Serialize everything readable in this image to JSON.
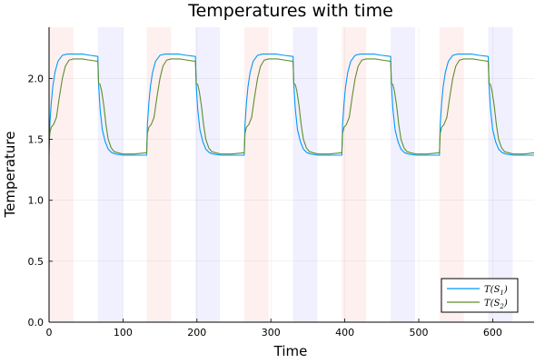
{
  "chart_data": {
    "type": "line",
    "title": "Temperatures with time",
    "xlabel": "Time",
    "ylabel": "Temperature",
    "xlim": [
      0,
      656
    ],
    "ylim": [
      0,
      2.42
    ],
    "x_ticks": [
      0,
      100,
      200,
      300,
      400,
      500,
      600
    ],
    "y_ticks": [
      0.0,
      0.5,
      1.0,
      1.5,
      2.0
    ],
    "y_tick_labels": [
      "0.0",
      "0.5",
      "1.0",
      "1.5",
      "2.0"
    ],
    "grid": true,
    "legend_position": "bottom-right",
    "shaded_intervals": [
      {
        "start": 0,
        "end": 33,
        "color": "#ff8080"
      },
      {
        "start": 66,
        "end": 100,
        "color": "#8080ff"
      },
      {
        "start": 132,
        "end": 165,
        "color": "#ff8080"
      },
      {
        "start": 198,
        "end": 231,
        "color": "#8080ff"
      },
      {
        "start": 264,
        "end": 297,
        "color": "#ff8080"
      },
      {
        "start": 330,
        "end": 363,
        "color": "#8080ff"
      },
      {
        "start": 396,
        "end": 429,
        "color": "#ff8080"
      },
      {
        "start": 462,
        "end": 495,
        "color": "#8080ff"
      },
      {
        "start": 528,
        "end": 561,
        "color": "#ff8080"
      },
      {
        "start": 594,
        "end": 627,
        "color": "#8080ff"
      }
    ],
    "series": [
      {
        "name": "T(S1)",
        "label_main": "T(S",
        "label_sub": "1",
        "label_close": ")",
        "color": "#009af9",
        "x": [
          0,
          1,
          3,
          5,
          8,
          12,
          18,
          25,
          33,
          45,
          55,
          66,
          67,
          69,
          72,
          76,
          80,
          85,
          90,
          100,
          115,
          132,
          133,
          135,
          137,
          140,
          144,
          150,
          157,
          165,
          175,
          185,
          198,
          199,
          201,
          204,
          208,
          212,
          217,
          222,
          232,
          247,
          264,
          265,
          267,
          269,
          272,
          276,
          282,
          289,
          297,
          307,
          317,
          330,
          331,
          333,
          336,
          340,
          344,
          349,
          354,
          364,
          379,
          396,
          397,
          399,
          401,
          404,
          408,
          414,
          421,
          429,
          439,
          449,
          462,
          463,
          465,
          468,
          472,
          476,
          481,
          486,
          496,
          511,
          528,
          529,
          531,
          533,
          536,
          540,
          546,
          553,
          561,
          571,
          581,
          594,
          595,
          597,
          600,
          604,
          608,
          613,
          618,
          628,
          643,
          656
        ],
        "y": [
          1.38,
          1.62,
          1.8,
          1.93,
          2.05,
          2.14,
          2.19,
          2.2,
          2.2,
          2.2,
          2.19,
          2.18,
          1.95,
          1.75,
          1.58,
          1.48,
          1.42,
          1.39,
          1.38,
          1.37,
          1.37,
          1.37,
          1.62,
          1.8,
          1.93,
          2.05,
          2.14,
          2.19,
          2.2,
          2.2,
          2.2,
          2.19,
          2.18,
          1.95,
          1.75,
          1.58,
          1.48,
          1.42,
          1.39,
          1.38,
          1.37,
          1.37,
          1.37,
          1.62,
          1.8,
          1.93,
          2.05,
          2.14,
          2.19,
          2.2,
          2.2,
          2.2,
          2.19,
          2.18,
          1.95,
          1.75,
          1.58,
          1.48,
          1.42,
          1.39,
          1.38,
          1.37,
          1.37,
          1.37,
          1.62,
          1.8,
          1.93,
          2.05,
          2.14,
          2.19,
          2.2,
          2.2,
          2.2,
          2.19,
          2.18,
          1.95,
          1.75,
          1.58,
          1.48,
          1.42,
          1.39,
          1.38,
          1.37,
          1.37,
          1.37,
          1.62,
          1.8,
          1.93,
          2.05,
          2.14,
          2.19,
          2.2,
          2.2,
          2.2,
          2.19,
          2.18,
          1.95,
          1.75,
          1.58,
          1.48,
          1.42,
          1.39,
          1.38,
          1.37,
          1.37,
          1.37
        ]
      },
      {
        "name": "T(S2)",
        "label_main": "T(S",
        "label_sub": "2",
        "label_close": ")",
        "color": "#5f8d2c",
        "x": [
          0,
          1,
          3,
          6,
          10,
          14,
          18,
          22,
          27,
          33,
          45,
          55,
          66,
          67,
          69,
          71,
          74,
          77,
          80,
          84,
          88,
          93,
          100,
          115,
          132,
          133,
          135,
          138,
          142,
          146,
          150,
          154,
          159,
          165,
          177,
          187,
          198,
          199,
          201,
          203,
          206,
          209,
          212,
          216,
          220,
          225,
          232,
          247,
          264,
          265,
          267,
          270,
          274,
          278,
          282,
          286,
          291,
          297,
          309,
          319,
          330,
          331,
          333,
          335,
          338,
          341,
          344,
          348,
          352,
          357,
          364,
          379,
          396,
          397,
          399,
          402,
          406,
          410,
          414,
          418,
          423,
          429,
          441,
          451,
          462,
          463,
          465,
          467,
          470,
          473,
          476,
          480,
          484,
          489,
          496,
          511,
          528,
          529,
          531,
          534,
          538,
          542,
          546,
          550,
          555,
          561,
          573,
          583,
          594,
          595,
          597,
          599,
          602,
          605,
          608,
          612,
          616,
          621,
          628,
          643,
          656
        ],
        "y": [
          1.45,
          1.55,
          1.6,
          1.62,
          1.68,
          1.85,
          2.0,
          2.1,
          2.15,
          2.16,
          2.16,
          2.15,
          2.14,
          1.96,
          1.95,
          1.9,
          1.78,
          1.62,
          1.5,
          1.43,
          1.4,
          1.39,
          1.38,
          1.38,
          1.39,
          1.55,
          1.6,
          1.62,
          1.68,
          1.85,
          2.0,
          2.1,
          2.15,
          2.16,
          2.16,
          2.15,
          2.14,
          1.96,
          1.95,
          1.9,
          1.78,
          1.62,
          1.5,
          1.43,
          1.4,
          1.39,
          1.38,
          1.38,
          1.39,
          1.55,
          1.6,
          1.62,
          1.68,
          1.85,
          2.0,
          2.1,
          2.15,
          2.16,
          2.16,
          2.15,
          2.14,
          1.96,
          1.95,
          1.9,
          1.78,
          1.62,
          1.5,
          1.43,
          1.4,
          1.39,
          1.38,
          1.38,
          1.39,
          1.55,
          1.6,
          1.62,
          1.68,
          1.85,
          2.0,
          2.1,
          2.15,
          2.16,
          2.16,
          2.15,
          2.14,
          1.96,
          1.95,
          1.9,
          1.78,
          1.62,
          1.5,
          1.43,
          1.4,
          1.39,
          1.38,
          1.38,
          1.39,
          1.55,
          1.6,
          1.62,
          1.68,
          1.85,
          2.0,
          2.1,
          2.15,
          2.16,
          2.16,
          2.15,
          2.14,
          1.96,
          1.95,
          1.9,
          1.78,
          1.62,
          1.5,
          1.43,
          1.4,
          1.39,
          1.38,
          1.38,
          1.39
        ]
      }
    ]
  }
}
